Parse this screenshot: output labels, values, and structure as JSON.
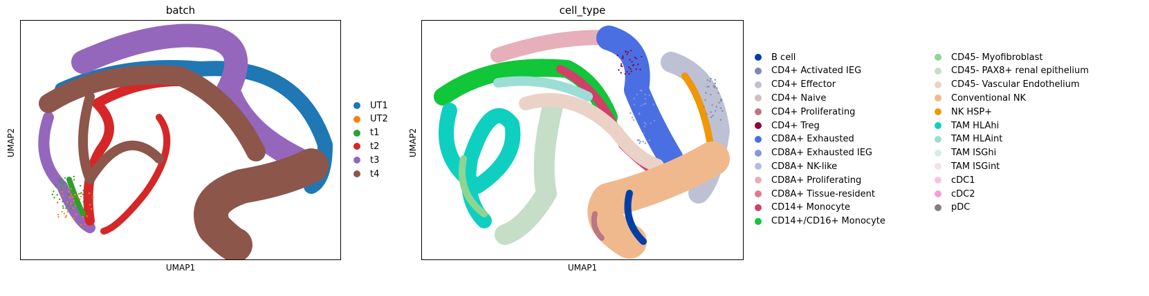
{
  "chart_data": [
    {
      "type": "scatter",
      "title": "batch",
      "xlabel": "UMAP1",
      "ylabel": "UMAP2",
      "grid": false,
      "ticks": false,
      "legend_placement": "right",
      "series": [
        {
          "name": "UT1",
          "color": "#1f77b4"
        },
        {
          "name": "UT2",
          "color": "#ff7f0e"
        },
        {
          "name": "t1",
          "color": "#2ca02c"
        },
        {
          "name": "t2",
          "color": "#d62728"
        },
        {
          "name": "t3",
          "color": "#9467bd"
        },
        {
          "name": "t4",
          "color": "#8c564b"
        }
      ]
    },
    {
      "type": "scatter",
      "title": "cell_type",
      "xlabel": "UMAP1",
      "ylabel": "UMAP2",
      "grid": false,
      "ticks": false,
      "legend_placement": "right",
      "series": [
        {
          "name": "B cell",
          "color": "#023fa5"
        },
        {
          "name": "CD4+ Activated IEG",
          "color": "#7d87b9"
        },
        {
          "name": "CD4+ Effector",
          "color": "#bec1d4"
        },
        {
          "name": "CD4+ Naive",
          "color": "#d6bcc0"
        },
        {
          "name": "CD4+ Proliferating",
          "color": "#bb7784"
        },
        {
          "name": "CD4+ Treg",
          "color": "#8e063b"
        },
        {
          "name": "CD8A+ Exhausted",
          "color": "#4a6fe3"
        },
        {
          "name": "CD8A+ Exhausted IEG",
          "color": "#8595e1"
        },
        {
          "name": "CD8A+ NK-like",
          "color": "#b5bbe3"
        },
        {
          "name": "CD8A+ Proliferating",
          "color": "#e6afb9"
        },
        {
          "name": "CD8A+ Tissue-resident",
          "color": "#e07b91"
        },
        {
          "name": "CD14+ Monocyte",
          "color": "#d33f6a"
        },
        {
          "name": "CD14+/CD16+ Monocyte",
          "color": "#11c638"
        },
        {
          "name": "CD45- Myofibroblast",
          "color": "#8dd593"
        },
        {
          "name": "CD45- PAX8+ renal epithelium",
          "color": "#c6dec7"
        },
        {
          "name": "CD45- Vascular Endothelium",
          "color": "#ead3c6"
        },
        {
          "name": "Conventional NK",
          "color": "#f0b98d"
        },
        {
          "name": "NK HSP+",
          "color": "#ef9708"
        },
        {
          "name": "TAM HLAhi",
          "color": "#0fcfc0"
        },
        {
          "name": "TAM HLAint",
          "color": "#9cded6"
        },
        {
          "name": "TAM ISGhi",
          "color": "#d5eae7"
        },
        {
          "name": "TAM ISGint",
          "color": "#f3e1eb"
        },
        {
          "name": "cDC1",
          "color": "#f6c4e1"
        },
        {
          "name": "cDC2",
          "color": "#f79cd4"
        },
        {
          "name": "pDC",
          "color": "#7f7f7f"
        }
      ]
    }
  ]
}
